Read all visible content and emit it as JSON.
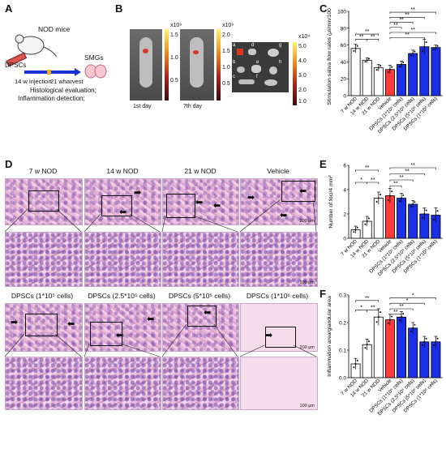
{
  "panels": {
    "A": "A",
    "B": "B",
    "C": "C",
    "D": "D",
    "E": "E",
    "F": "F"
  },
  "panelA": {
    "mouse_label": "NOD mice",
    "cells_label": "DPSCs",
    "target_label": "SMGs",
    "timeline": [
      "14 w",
      "injection",
      "21 w",
      "harvest"
    ],
    "outcomes": [
      "Histological evaluation;",
      "Inflammation detection;"
    ]
  },
  "panelB": {
    "scale1": {
      "exp": "x10⁹",
      "ticks": [
        "1.5",
        "1.0",
        "0.5"
      ]
    },
    "scale2": {
      "exp": "x10⁹",
      "ticks": [
        "2.0",
        "1.5",
        "1.0",
        "0.5"
      ]
    },
    "scale3": {
      "exp": "x10⁹",
      "ticks": [
        "5.0",
        "4.0",
        "3.0",
        "2.0",
        "1.0"
      ]
    },
    "day1": "1st day",
    "day7": "7th day",
    "organ_letters": [
      "a",
      "b",
      "c",
      "d",
      "e",
      "f",
      "g",
      "h"
    ]
  },
  "panelD": {
    "row1_labels": [
      "7 w NOD",
      "14 w NOD",
      "21 w NOD",
      "Vehicle"
    ],
    "row2_labels": [
      "DPSCs (1*10⁵ cells)",
      "DPSCs (2.5*10⁵ cells)",
      "DPSCs (5*10⁵ cells)",
      "DPSCs (1*10⁶ cells)"
    ],
    "scale_low": "200 μm",
    "scale_high": "100 μm"
  },
  "colors": {
    "nod": "#ffffff",
    "vehicle": "#ff3b3b",
    "dpsc": "#1a2fe6",
    "hot": "#d93a1f"
  },
  "sig": [
    "**",
    "*"
  ],
  "chart_data": [
    {
      "panel": "C",
      "type": "bar",
      "ylabel": "Stimulation saliva flow rates (μl/min/100 g)",
      "ylim": [
        0,
        100
      ],
      "yticks": [
        "0",
        "20",
        "40",
        "60",
        "80",
        "100"
      ],
      "categories": [
        "7 w NOD",
        "14 w NOD",
        "21 w NOD",
        "Vehicle",
        "DPSCs (1*10⁵ cells)",
        "DPSCs (2.5*10⁵ cells)",
        "DPSCs (5*10⁵ cells)",
        "DPSCs (1*10⁶ cells)"
      ],
      "values": [
        56,
        42,
        33,
        31,
        37,
        50,
        58,
        57
      ],
      "errors": [
        5,
        3,
        4,
        5,
        4,
        4,
        9,
        3
      ]
    },
    {
      "panel": "E",
      "type": "bar",
      "ylabel": "Number of foci/4 mm²",
      "ylim": [
        0,
        6
      ],
      "yticks": [
        "0",
        "2",
        "4",
        "6"
      ],
      "categories": [
        "7 w NOD",
        "14 w NOD",
        "21 w NOD",
        "Vehicle",
        "DPSCs (1*10⁵ cells)",
        "DPSCs (2.5*10⁵ cells)",
        "DPSCs (5*10⁵ cells)",
        "DPSCs (1*10⁶ cells)"
      ],
      "values": [
        0.7,
        1.4,
        3.3,
        3.5,
        3.3,
        2.8,
        2.0,
        1.9
      ],
      "errors": [
        0.3,
        0.4,
        0.5,
        0.6,
        0.4,
        0.3,
        0.5,
        0.6
      ]
    },
    {
      "panel": "F",
      "type": "bar",
      "ylabel": "Inflammation area/glandular area",
      "ylim": [
        0,
        0.3
      ],
      "yticks": [
        "0.0",
        "0.1",
        "0.2",
        "0.3"
      ],
      "categories": [
        "7 w NOD",
        "14 w NOD",
        "21 w NOD",
        "Vehicle",
        "DPSCs (1*10⁵ cells)",
        "DPSCs (2.5*10⁵ cells)",
        "DPSCs (5*10⁵ cells)",
        "DPSCs (1*10⁶ cells)"
      ],
      "values": [
        0.05,
        0.12,
        0.22,
        0.21,
        0.22,
        0.18,
        0.13,
        0.13
      ],
      "errors": [
        0.02,
        0.02,
        0.03,
        0.02,
        0.02,
        0.02,
        0.02,
        0.02
      ]
    }
  ]
}
